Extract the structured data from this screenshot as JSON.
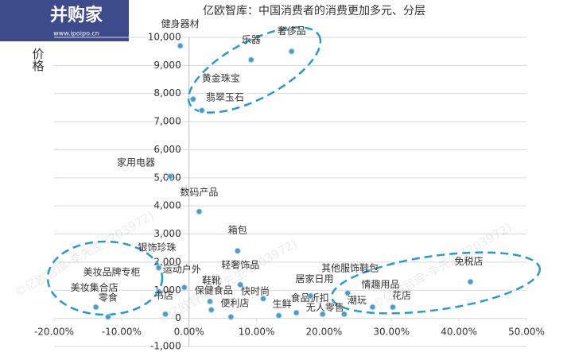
{
  "chart_data": {
    "type": "scatter",
    "title": "亿欧智库：中国消费者的消费更加多元、分层",
    "y_label": "价格",
    "logo": "并购家",
    "logo_url": "www.ipoipo.cn",
    "watermark": "©亿欧智库-李先生 (203972)",
    "color": "#4a9cc9",
    "grid": true,
    "xlim": [
      -20,
      50
    ],
    "ylim": [
      -1000,
      10000
    ],
    "xticks": [
      {
        "value": -20,
        "label": "-20.00%"
      },
      {
        "value": -10,
        "label": "-10.00%"
      },
      {
        "value": 0,
        "label": "0.00%"
      },
      {
        "value": 10,
        "label": "10.00%"
      },
      {
        "value": 20,
        "label": "20.00%"
      },
      {
        "value": 30,
        "label": "30.00%"
      },
      {
        "value": 40,
        "label": "40.00%"
      },
      {
        "value": 50,
        "label": "50.00%"
      }
    ],
    "yticks": [
      {
        "value": -1000,
        "label": "-1,000"
      },
      0,
      {
        "value": 1000,
        "label": "1,000"
      },
      {
        "value": 2000,
        "label": "2,000"
      },
      {
        "value": 3000,
        "label": "3,000"
      },
      {
        "value": 4000,
        "label": "4,000"
      },
      {
        "value": 5000,
        "label": "5,000"
      },
      {
        "value": 6000,
        "label": "6,000"
      },
      {
        "value": 7000,
        "label": "7,000"
      },
      {
        "value": 8000,
        "label": "8,000"
      },
      {
        "value": 9000,
        "label": "9,000"
      },
      {
        "value": 10000,
        "label": "10,000"
      }
    ],
    "labels": [
      "健身器材",
      "乐器",
      "奢侈品",
      "黄金珠宝",
      "翡翠玉石",
      "家用电器",
      "数码产品",
      "箱包",
      "银饰珍珠",
      "轻奢饰品",
      "运动户外",
      "美妆品牌专柜",
      "美妆集合店",
      "零食",
      "书店",
      "鞋靴",
      "保健食品",
      "便利店",
      "快时尚",
      "生鲜",
      "食品折扣",
      "无人零售",
      "居家日用",
      "其他服饰鞋包",
      "潮玩",
      "情趣用品",
      "花店",
      "免税店"
    ],
    "x": [
      -1.3,
      9.2,
      15.2,
      0.6,
      1.9,
      -2.8,
      1.5,
      7.2,
      -4.5,
      7.6,
      -0.7,
      -4.5,
      -13.8,
      -12,
      -3.5,
      3.1,
      3.3,
      6.2,
      11,
      13.3,
      15.9,
      19.8,
      18,
      23.5,
      23,
      27.2,
      30.2,
      41.7
    ],
    "y": [
      9700,
      9200,
      9500,
      7800,
      7400,
      5050,
      3800,
      2400,
      1800,
      1200,
      1100,
      950,
      400,
      50,
      150,
      600,
      300,
      50,
      700,
      100,
      200,
      150,
      800,
      900,
      150,
      400,
      400,
      1300
    ]
  }
}
